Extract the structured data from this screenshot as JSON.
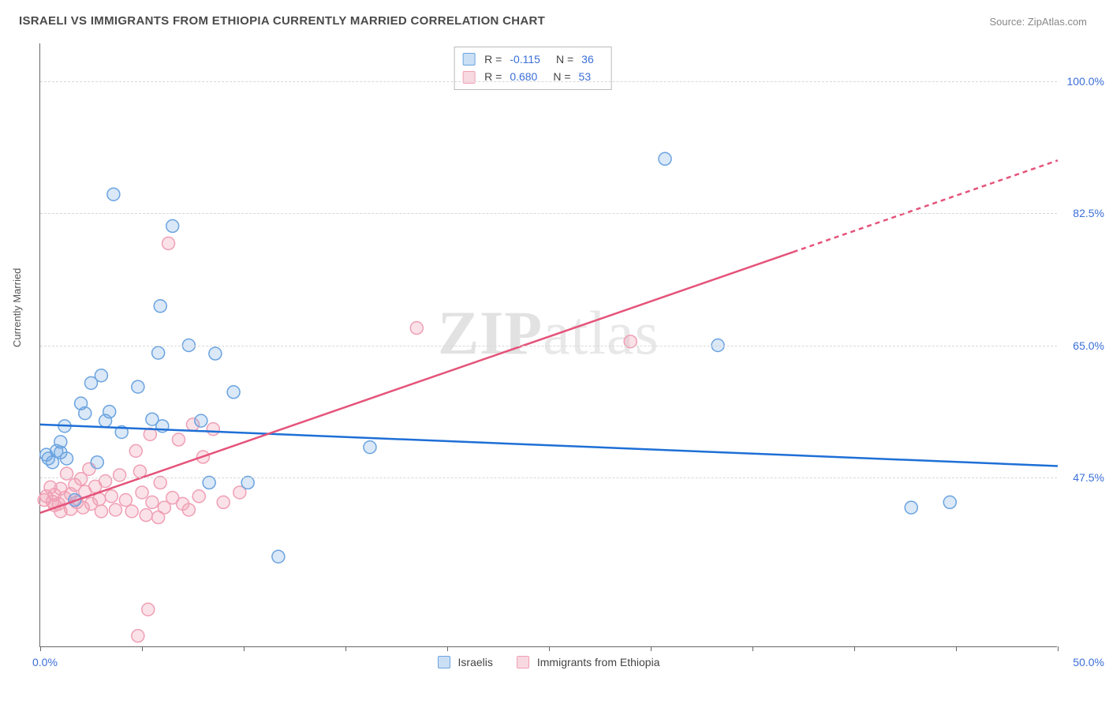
{
  "title": "ISRAELI VS IMMIGRANTS FROM ETHIOPIA CURRENTLY MARRIED CORRELATION CHART",
  "source": "Source: ZipAtlas.com",
  "ylabel": "Currently Married",
  "watermark_bold": "ZIP",
  "watermark_thin": "atlas",
  "chart": {
    "type": "scatter",
    "xlim": [
      0,
      50
    ],
    "ylim": [
      25,
      105
    ],
    "ytick_values": [
      47.5,
      65.0,
      82.5,
      100.0
    ],
    "ytick_labels": [
      "47.5%",
      "65.0%",
      "82.5%",
      "100.0%"
    ],
    "xtick_values": [
      0,
      5,
      10,
      15,
      20,
      25,
      30,
      35,
      40,
      45,
      50
    ],
    "xlim_labels": {
      "min": "0.0%",
      "max": "50.0%"
    },
    "background_color": "#ffffff",
    "grid_color": "#d8d8d8",
    "axis_color": "#666666"
  },
  "series": {
    "blue": {
      "label": "Israelis",
      "stroke": "#6aa3e0",
      "fill": "#6aa3e0",
      "fill_opacity": 0.25,
      "marker_radius": 8,
      "r_label": "R =",
      "r_value": "-0.115",
      "n_label": "N =",
      "n_value": "36",
      "regression": {
        "x1": 0,
        "y1": 54.5,
        "x2": 50,
        "y2": 49.0,
        "color": "#1e6fd6",
        "width": 2.5
      },
      "points": [
        [
          0.3,
          50.5
        ],
        [
          0.4,
          50
        ],
        [
          0.8,
          51
        ],
        [
          0.6,
          49.5
        ],
        [
          1.0,
          52.2
        ],
        [
          1.0,
          50.8
        ],
        [
          1.2,
          54.3
        ],
        [
          1.3,
          50
        ],
        [
          1.7,
          44.5
        ],
        [
          2.0,
          57.3
        ],
        [
          2.2,
          56.0
        ],
        [
          2.5,
          60
        ],
        [
          3.0,
          61
        ],
        [
          3.2,
          55
        ],
        [
          3.4,
          56.2
        ],
        [
          3.6,
          85
        ],
        [
          4.8,
          59.5
        ],
        [
          5.5,
          55.2
        ],
        [
          5.8,
          64
        ],
        [
          5.9,
          70.2
        ],
        [
          6.5,
          80.8
        ],
        [
          7.3,
          65
        ],
        [
          7.9,
          55
        ],
        [
          8.3,
          46.8
        ],
        [
          8.6,
          63.9
        ],
        [
          9.5,
          58.8
        ],
        [
          10.2,
          46.8
        ],
        [
          11.7,
          37.0
        ],
        [
          16.2,
          51.5
        ],
        [
          30.7,
          89.7
        ],
        [
          33.3,
          65
        ],
        [
          42.8,
          43.5
        ],
        [
          44.7,
          44.2
        ],
        [
          6.0,
          54.3
        ],
        [
          4.0,
          53.5
        ],
        [
          2.8,
          49.5
        ]
      ]
    },
    "pink": {
      "label": "Immigrants from Ethiopia",
      "stroke": "#f09fb4",
      "fill": "#f09fb4",
      "fill_opacity": 0.3,
      "marker_radius": 8,
      "r_label": "R =",
      "r_value": "0.680",
      "n_label": "N =",
      "n_value": "53",
      "regression": {
        "x1": 0,
        "y1": 42.8,
        "x2": 50,
        "y2": 89.5,
        "color": "#e5537a",
        "width": 2.5,
        "solid_until_x": 37
      },
      "points": [
        [
          0.2,
          44.5
        ],
        [
          0.3,
          45.0
        ],
        [
          0.5,
          46.2
        ],
        [
          0.6,
          44.3
        ],
        [
          0.7,
          45.2
        ],
        [
          0.7,
          43.8
        ],
        [
          0.9,
          44.0
        ],
        [
          1.0,
          46.0
        ],
        [
          1.0,
          43.0
        ],
        [
          1.2,
          44.8
        ],
        [
          1.3,
          48.0
        ],
        [
          1.5,
          45.3
        ],
        [
          1.5,
          43.3
        ],
        [
          1.7,
          46.5
        ],
        [
          1.8,
          44.2
        ],
        [
          2.0,
          47.3
        ],
        [
          2.1,
          43.5
        ],
        [
          2.2,
          45.6
        ],
        [
          2.4,
          48.6
        ],
        [
          2.5,
          44.0
        ],
        [
          2.7,
          46.3
        ],
        [
          2.9,
          44.6
        ],
        [
          3.0,
          43.0
        ],
        [
          3.2,
          47.0
        ],
        [
          3.5,
          45.0
        ],
        [
          3.7,
          43.2
        ],
        [
          3.9,
          47.8
        ],
        [
          4.2,
          44.5
        ],
        [
          4.5,
          43.0
        ],
        [
          4.7,
          51.0
        ],
        [
          4.9,
          48.3
        ],
        [
          5.0,
          45.5
        ],
        [
          5.2,
          42.5
        ],
        [
          5.4,
          53.2
        ],
        [
          5.5,
          44.2
        ],
        [
          5.8,
          42.2
        ],
        [
          5.9,
          46.8
        ],
        [
          6.1,
          43.5
        ],
        [
          6.5,
          44.8
        ],
        [
          6.8,
          52.5
        ],
        [
          7.0,
          44.0
        ],
        [
          7.3,
          43.2
        ],
        [
          7.5,
          54.5
        ],
        [
          7.8,
          45.0
        ],
        [
          8.0,
          50.2
        ],
        [
          8.5,
          53.9
        ],
        [
          9.0,
          44.2
        ],
        [
          9.8,
          45.5
        ],
        [
          5.3,
          30.0
        ],
        [
          4.8,
          26.5
        ],
        [
          6.3,
          78.5
        ],
        [
          18.5,
          67.3
        ],
        [
          29.0,
          65.5
        ]
      ]
    }
  },
  "colors": {
    "title": "#4a4a4a",
    "source": "#888888",
    "ylabel": "#555555",
    "tick_label": "#3a6fd8",
    "value_blue": "#3a6fd8"
  }
}
